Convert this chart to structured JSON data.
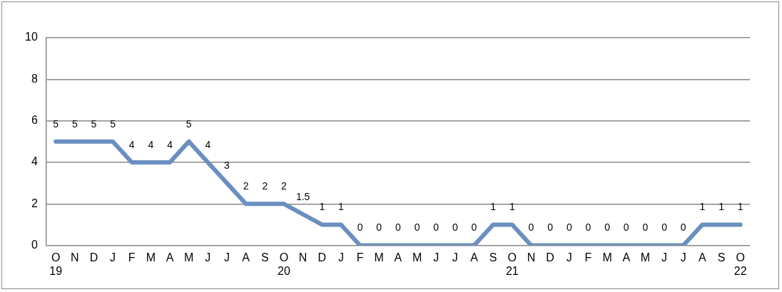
{
  "chart_data": {
    "type": "line",
    "categories": [
      "O\n19",
      "N",
      "D",
      "J",
      "F",
      "M",
      "A",
      "M",
      "J",
      "J",
      "A",
      "S",
      "O\n20",
      "N",
      "D",
      "J",
      "F",
      "M",
      "A",
      "M",
      "J",
      "J",
      "A",
      "S",
      "O\n21",
      "N",
      "D",
      "J",
      "F",
      "M",
      "A",
      "M",
      "J",
      "J",
      "A",
      "S",
      "O\n22"
    ],
    "series": [
      {
        "color": "#6a8fc0",
        "values": [
          5,
          5,
          5,
          5,
          4,
          4,
          4,
          5,
          4,
          3,
          2,
          2,
          2,
          1.5,
          1,
          1,
          0,
          0,
          0,
          0,
          0,
          0,
          0,
          1,
          1,
          0,
          0,
          0,
          0,
          0,
          0,
          0,
          0,
          0,
          1,
          1,
          1
        ]
      }
    ],
    "ylim": [
      0,
      10
    ],
    "yticks": [
      0,
      2,
      4,
      6,
      8,
      10
    ],
    "grid": "y",
    "legend": false,
    "marker": "none",
    "line_style": "solid",
    "data_labels": true
  }
}
